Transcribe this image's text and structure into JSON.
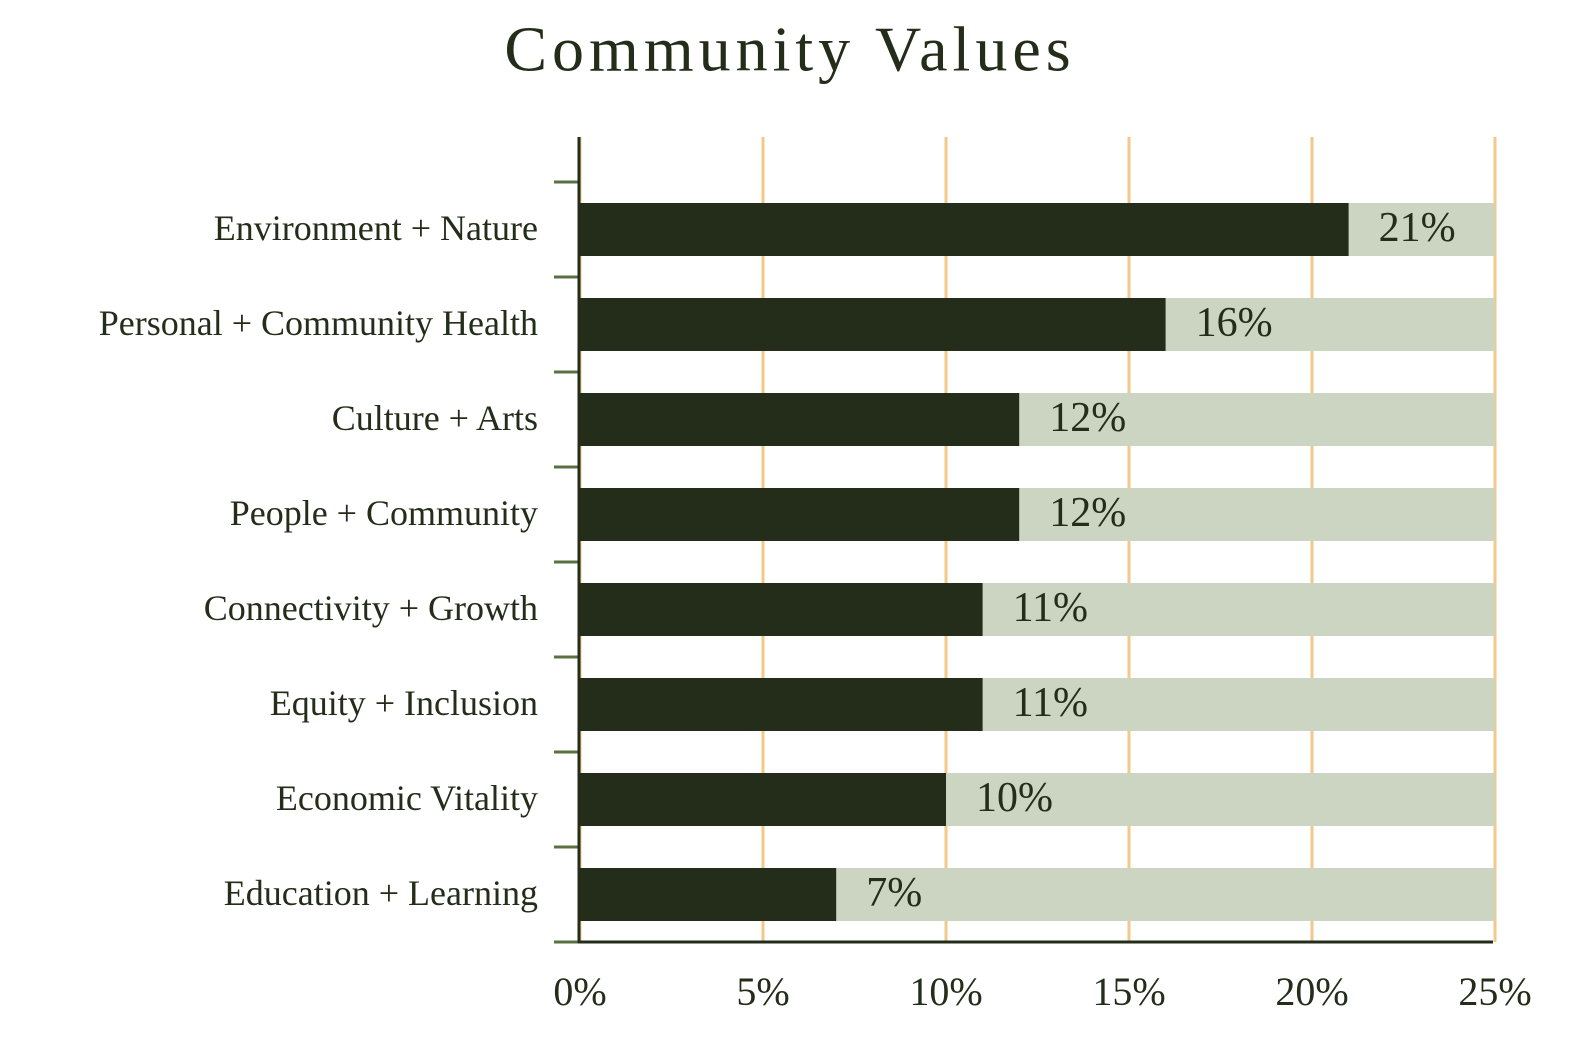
{
  "chart_data": {
    "type": "bar",
    "orientation": "horizontal",
    "title": "Community Values",
    "categories": [
      "Environment + Nature",
      "Personal + Community Health",
      "Culture + Arts",
      "People + Community",
      "Connectivity + Growth",
      "Equity + Inclusion",
      "Economic Vitality",
      "Education + Learning"
    ],
    "values": [
      21,
      16,
      12,
      12,
      11,
      11,
      10,
      7
    ],
    "value_labels": [
      "21%",
      "16%",
      "12%",
      "12%",
      "11%",
      "11%",
      "10%",
      "7%"
    ],
    "color": "#232d19",
    "track_color": "#cbd5c1",
    "grid_color": "#f2c98a",
    "xlim": [
      0,
      25
    ],
    "xticks": [
      {
        "value": 0,
        "label": "0%"
      },
      {
        "value": 5,
        "label": "5%"
      },
      {
        "value": 10,
        "label": "10%"
      },
      {
        "value": 15,
        "label": "15%"
      },
      {
        "value": 20,
        "label": "20%"
      },
      {
        "value": 25,
        "label": "25%"
      }
    ],
    "grid": true
  }
}
